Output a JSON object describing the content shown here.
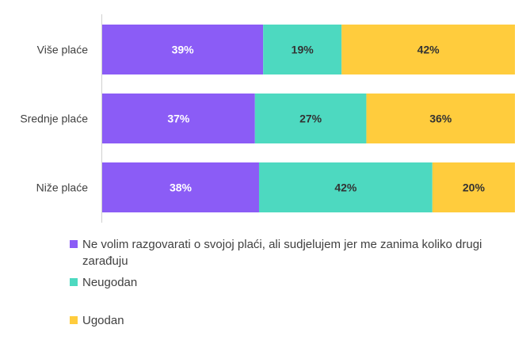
{
  "chart_data": {
    "type": "bar",
    "orientation": "horizontal",
    "stacked": true,
    "categories": [
      "Više plaće",
      "Srednje plaće",
      "Niže plaće"
    ],
    "series": [
      {
        "name": "Ne volim razgovarati o svojoj plaći, ali sudjelujem jer me zanima koliko drugi zarađuju",
        "color": "#8B5CF6",
        "label_color": "#ffffff",
        "values": [
          39,
          37,
          38
        ]
      },
      {
        "name": "Neugodan",
        "color": "#4DD9C0",
        "label_color": "#333333",
        "values": [
          19,
          27,
          42
        ]
      },
      {
        "name": "Ugodan",
        "color": "#FFCC3D",
        "label_color": "#333333",
        "values": [
          42,
          36,
          20
        ]
      }
    ],
    "value_suffix": "%",
    "xlim": [
      0,
      100
    ],
    "grid": false,
    "legend_position": "bottom"
  },
  "legend": {
    "items": [
      {
        "label": "Ne volim razgovarati o svojoj plaći, ali sudjelujem jer me zanima koliko drugi zarađuju"
      },
      {
        "label": "Neugodan"
      },
      {
        "label": "Ugodan"
      }
    ]
  }
}
